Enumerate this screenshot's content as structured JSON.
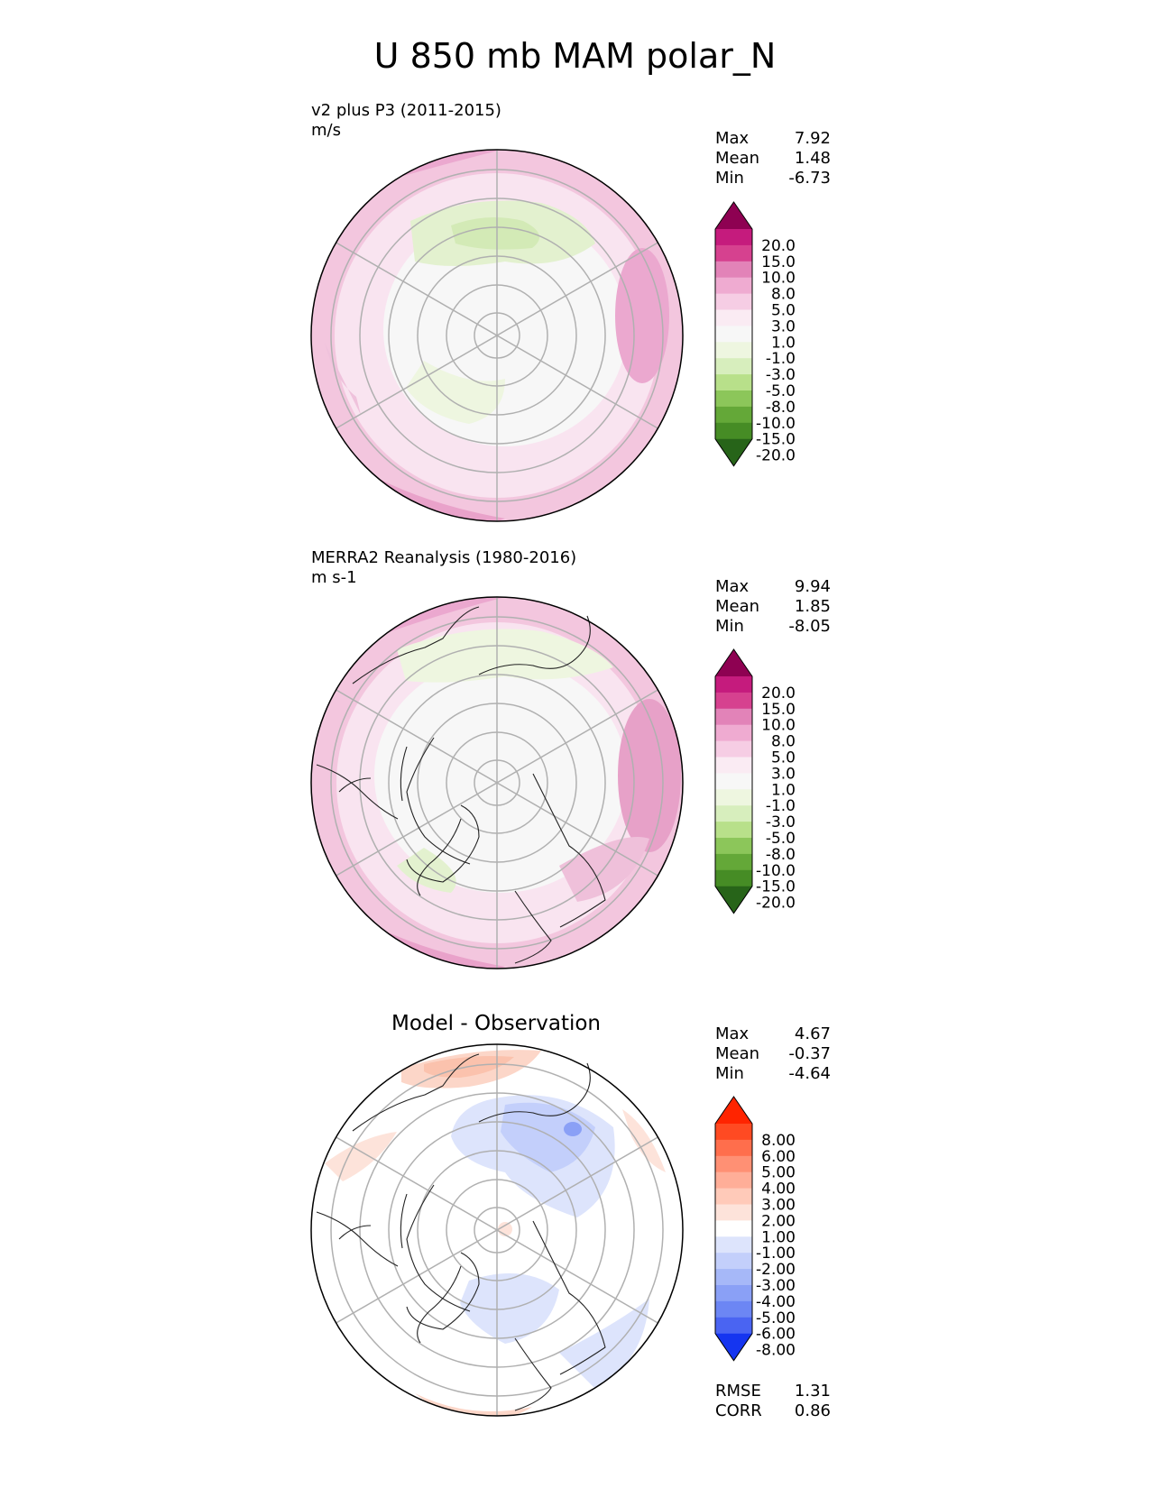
{
  "title": "U 850 mb MAM polar_N",
  "panels": [
    {
      "label": "v2 plus P3 (2011-2015)",
      "units": "m/s",
      "stats": {
        "max_label": "Max",
        "max": "7.92",
        "mean_label": "Mean",
        "mean": "1.48",
        "min_label": "Min",
        "min": "-6.73"
      },
      "colorbar": {
        "labels": [
          "20.0",
          "15.0",
          "10.0",
          "8.0",
          "5.0",
          "3.0",
          "1.0",
          "-1.0",
          "-3.0",
          "-5.0",
          "-8.0",
          "-10.0",
          "-15.0",
          "-20.0"
        ],
        "colors": [
          "#8e0152",
          "#c51b7d",
          "#d6418f",
          "#e283b8",
          "#efabd1",
          "#f6cde4",
          "#faebf3",
          "#f7f7f7",
          "#eef6e0",
          "#d7eebd",
          "#b8e08a",
          "#8cc65a",
          "#64a838",
          "#468c25",
          "#276419"
        ]
      }
    },
    {
      "label": "MERRA2 Reanalysis (1980-2016)",
      "units": "m s-1",
      "stats": {
        "max_label": "Max",
        "max": "9.94",
        "mean_label": "Mean",
        "mean": "1.85",
        "min_label": "Min",
        "min": "-8.05"
      },
      "colorbar": {
        "labels": [
          "20.0",
          "15.0",
          "10.0",
          "8.0",
          "5.0",
          "3.0",
          "1.0",
          "-1.0",
          "-3.0",
          "-5.0",
          "-8.0",
          "-10.0",
          "-15.0",
          "-20.0"
        ],
        "colors": [
          "#8e0152",
          "#c51b7d",
          "#d6418f",
          "#e283b8",
          "#efabd1",
          "#f6cde4",
          "#faebf3",
          "#f7f7f7",
          "#eef6e0",
          "#d7eebd",
          "#b8e08a",
          "#8cc65a",
          "#64a838",
          "#468c25",
          "#276419"
        ]
      }
    },
    {
      "label": "Model - Observation",
      "stats": {
        "max_label": "Max",
        "max": "4.67",
        "mean_label": "Mean",
        "mean": "-0.37",
        "min_label": "Min",
        "min": "-4.64"
      },
      "metrics": {
        "rmse_label": "RMSE",
        "rmse": "1.31",
        "corr_label": "CORR",
        "corr": "0.86"
      },
      "colorbar": {
        "labels": [
          "8.00",
          "6.00",
          "5.00",
          "4.00",
          "3.00",
          "2.00",
          "1.00",
          "-1.00",
          "-2.00",
          "-3.00",
          "-4.00",
          "-5.00",
          "-6.00",
          "-8.00"
        ],
        "colors": [
          "#ff2400",
          "#ff4a22",
          "#ff6e4c",
          "#ff9074",
          "#ffae98",
          "#ffcab9",
          "#fde3da",
          "#ffffff",
          "#dde4fc",
          "#c3cffb",
          "#a6b8f8",
          "#8aa0f6",
          "#6c86f4",
          "#4a64f2",
          "#1535f0"
        ]
      }
    }
  ]
}
